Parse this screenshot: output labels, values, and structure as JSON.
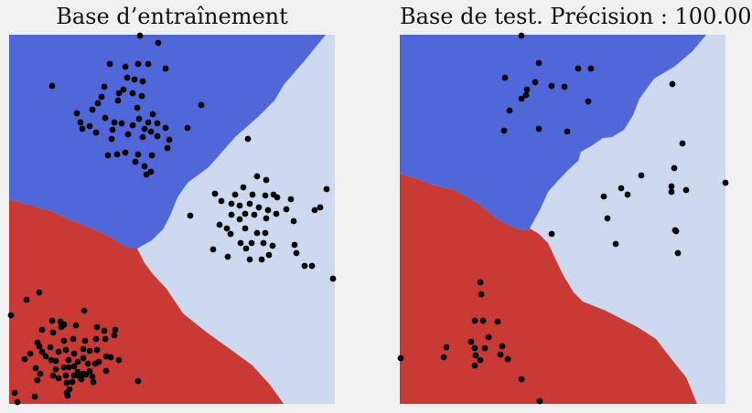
{
  "colors": {
    "region_blue": "#4f67d9",
    "region_light": "#ccd9ee",
    "region_red": "#c93a35",
    "points": "#000000",
    "background": "#f0f0f0"
  },
  "chart_data": [
    {
      "type": "scatter",
      "title": "Base d’entraînement",
      "xlabel": "",
      "ylabel": "",
      "xlim": [
        0,
        356
      ],
      "ylim": [
        0,
        404
      ],
      "grid": false,
      "regions": [
        {
          "class": "blue",
          "boundary": [
            [
              0,
              0
            ],
            [
              346,
              0
            ],
            [
              325,
              26
            ],
            [
              300,
              55
            ],
            [
              290,
              72
            ],
            [
              272,
              90
            ],
            [
              247,
              112
            ],
            [
              218,
              145
            ],
            [
              195,
              162
            ],
            [
              184,
              178
            ],
            [
              176,
              198
            ],
            [
              168,
              213
            ],
            [
              156,
              225
            ],
            [
              140,
              234
            ],
            [
              127,
              232
            ],
            [
              112,
              222
            ],
            [
              88,
              211
            ],
            [
              68,
              203
            ],
            [
              46,
              193
            ],
            [
              0,
              180
            ]
          ]
        },
        {
          "class": "red",
          "boundary": [
            [
              0,
              180
            ],
            [
              46,
              193
            ],
            [
              68,
              203
            ],
            [
              88,
              211
            ],
            [
              112,
              222
            ],
            [
              127,
              232
            ],
            [
              140,
              234
            ],
            [
              148,
              250
            ],
            [
              158,
              263
            ],
            [
              172,
              278
            ],
            [
              190,
              305
            ],
            [
              215,
              325
            ],
            [
              240,
              343
            ],
            [
              266,
              362
            ],
            [
              285,
              383
            ],
            [
              300,
              404
            ],
            [
              0,
              404
            ]
          ]
        }
      ],
      "points": [
        [
          143,
          1
        ],
        [
          163,
          9
        ],
        [
          47,
          56
        ],
        [
          110,
          32
        ],
        [
          127,
          35
        ],
        [
          141,
          32
        ],
        [
          152,
          32
        ],
        [
          171,
          37
        ],
        [
          137,
          49
        ],
        [
          129,
          47
        ],
        [
          146,
          51
        ],
        [
          104,
          57
        ],
        [
          125,
          60
        ],
        [
          120,
          64
        ],
        [
          135,
          64
        ],
        [
          145,
          67
        ],
        [
          119,
          72
        ],
        [
          101,
          68
        ],
        [
          97,
          75
        ],
        [
          74,
          86
        ],
        [
          91,
          82
        ],
        [
          78,
          96
        ],
        [
          88,
          100
        ],
        [
          105,
          91
        ],
        [
          115,
          96
        ],
        [
          113,
          104
        ],
        [
          123,
          97
        ],
        [
          135,
          99
        ],
        [
          142,
          92
        ],
        [
          152,
          96
        ],
        [
          148,
          103
        ],
        [
          162,
          97
        ],
        [
          155,
          106
        ],
        [
          171,
          102
        ],
        [
          140,
          80
        ],
        [
          157,
          87
        ],
        [
          80,
          103
        ],
        [
          95,
          107
        ],
        [
          112,
          114
        ],
        [
          130,
          109
        ],
        [
          146,
          112
        ],
        [
          162,
          111
        ],
        [
          175,
          115
        ],
        [
          173,
          124
        ],
        [
          156,
          132
        ],
        [
          141,
          131
        ],
        [
          127,
          129
        ],
        [
          118,
          131
        ],
        [
          108,
          132
        ],
        [
          138,
          139
        ],
        [
          148,
          144
        ],
        [
          155,
          150
        ],
        [
          150,
          153
        ],
        [
          195,
          102
        ],
        [
          210,
          77
        ],
        [
          261,
          114
        ],
        [
          271,
          155
        ],
        [
          281,
          159
        ],
        [
          256,
          167
        ],
        [
          247,
          175
        ],
        [
          266,
          175
        ],
        [
          280,
          176
        ],
        [
          289,
          175
        ],
        [
          293,
          178
        ],
        [
          308,
          180
        ],
        [
          347,
          169
        ],
        [
          225,
          174
        ],
        [
          232,
          182
        ],
        [
          243,
          185
        ],
        [
          252,
          187
        ],
        [
          263,
          185
        ],
        [
          273,
          189
        ],
        [
          283,
          192
        ],
        [
          292,
          196
        ],
        [
          303,
          191
        ],
        [
          340,
          189
        ],
        [
          334,
          192
        ],
        [
          198,
          198
        ],
        [
          243,
          197
        ],
        [
          252,
          202
        ],
        [
          258,
          196
        ],
        [
          268,
          197
        ],
        [
          281,
          201
        ],
        [
          311,
          204
        ],
        [
          230,
          208
        ],
        [
          238,
          212
        ],
        [
          242,
          218
        ],
        [
          258,
          212
        ],
        [
          271,
          217
        ],
        [
          280,
          217
        ],
        [
          223,
          235
        ],
        [
          253,
          228
        ],
        [
          265,
          228
        ],
        [
          278,
          228
        ],
        [
          288,
          231
        ],
        [
          239,
          243
        ],
        [
          259,
          234
        ],
        [
          276,
          246
        ],
        [
          263,
          246
        ],
        [
          284,
          241
        ],
        [
          312,
          230
        ],
        [
          314,
          239
        ],
        [
          323,
          253
        ],
        [
          331,
          253
        ],
        [
          354,
          267
        ],
        [
          2,
          307
        ],
        [
          19,
          290
        ],
        [
          33,
          282
        ],
        [
          82,
          302
        ],
        [
          36,
          323
        ],
        [
          47,
          313
        ],
        [
          56,
          314
        ],
        [
          57,
          320
        ],
        [
          60,
          317
        ],
        [
          73,
          318
        ],
        [
          96,
          320
        ],
        [
          104,
          324
        ],
        [
          115,
          329
        ],
        [
          116,
          323
        ],
        [
          48,
          326
        ],
        [
          60,
          335
        ],
        [
          70,
          333
        ],
        [
          83,
          335
        ],
        [
          95,
          333
        ],
        [
          105,
          333
        ],
        [
          31,
          337
        ],
        [
          33,
          341
        ],
        [
          45,
          342
        ],
        [
          54,
          347
        ],
        [
          62,
          345
        ],
        [
          71,
          349
        ],
        [
          81,
          344
        ],
        [
          88,
          346
        ],
        [
          96,
          345
        ],
        [
          36,
          347
        ],
        [
          17,
          355
        ],
        [
          23,
          349
        ],
        [
          40,
          352
        ],
        [
          46,
          356
        ],
        [
          51,
          357
        ],
        [
          65,
          356
        ],
        [
          75,
          358
        ],
        [
          81,
          354
        ],
        [
          86,
          360
        ],
        [
          98,
          358
        ],
        [
          106,
          352
        ],
        [
          111,
          353
        ],
        [
          120,
          356
        ],
        [
          29,
          365
        ],
        [
          34,
          371
        ],
        [
          51,
          366
        ],
        [
          60,
          364
        ],
        [
          65,
          364
        ],
        [
          71,
          363
        ],
        [
          75,
          369
        ],
        [
          81,
          371
        ],
        [
          88,
          368
        ],
        [
          94,
          360
        ],
        [
          106,
          368
        ],
        [
          31,
          378
        ],
        [
          48,
          373
        ],
        [
          54,
          376
        ],
        [
          62,
          373
        ],
        [
          71,
          373
        ],
        [
          77,
          374
        ],
        [
          84,
          372
        ],
        [
          91,
          374
        ],
        [
          92,
          380
        ],
        [
          69,
          380
        ],
        [
          79,
          377
        ],
        [
          63,
          381
        ],
        [
          66,
          388
        ],
        [
          64,
          395
        ],
        [
          141,
          379
        ],
        [
          6,
          392
        ],
        [
          9,
          402
        ],
        [
          28,
          396
        ],
        [
          63,
          392
        ]
      ]
    },
    {
      "type": "scatter",
      "title": "Base de test. Précision : 100.00",
      "xlabel": "",
      "ylabel": "",
      "xlim": [
        0,
        356
      ],
      "ylim": [
        0,
        404
      ],
      "grid": false,
      "regions": [
        {
          "class": "blue",
          "boundary": [
            [
              0,
              0
            ],
            [
              335,
              0
            ],
            [
              320,
              18
            ],
            [
              300,
              35
            ],
            [
              278,
              48
            ],
            [
              262,
              70
            ],
            [
              255,
              88
            ],
            [
              245,
              104
            ],
            [
              232,
              112
            ],
            [
              222,
              113
            ],
            [
              209,
              122
            ],
            [
              198,
              128
            ],
            [
              195,
              138
            ],
            [
              183,
              149
            ],
            [
              170,
              163
            ],
            [
              162,
              172
            ],
            [
              154,
              190
            ],
            [
              142,
              212
            ],
            [
              134,
              214
            ],
            [
              122,
              210
            ],
            [
              104,
              200
            ],
            [
              88,
              186
            ],
            [
              60,
              170
            ],
            [
              35,
              164
            ],
            [
              20,
              158
            ],
            [
              0,
              152
            ]
          ]
        },
        {
          "class": "red",
          "boundary": [
            [
              0,
              152
            ],
            [
              20,
              158
            ],
            [
              35,
              164
            ],
            [
              60,
              170
            ],
            [
              88,
              186
            ],
            [
              104,
              200
            ],
            [
              122,
              210
            ],
            [
              134,
              214
            ],
            [
              142,
              212
            ],
            [
              152,
              218
            ],
            [
              162,
              228
            ],
            [
              170,
              245
            ],
            [
              178,
              262
            ],
            [
              190,
              282
            ],
            [
              200,
              292
            ],
            [
              225,
              302
            ],
            [
              260,
              320
            ],
            [
              280,
              333
            ],
            [
              297,
              355
            ],
            [
              313,
              375
            ],
            [
              325,
              404
            ],
            [
              0,
              404
            ]
          ]
        }
      ],
      "points": [
        [
          133,
          1
        ],
        [
          152,
          31
        ],
        [
          195,
          37
        ],
        [
          209,
          37
        ],
        [
          115,
          47
        ],
        [
          148,
          52
        ],
        [
          166,
          56
        ],
        [
          180,
          57
        ],
        [
          139,
          60
        ],
        [
          298,
          54
        ],
        [
          138,
          66
        ],
        [
          133,
          70
        ],
        [
          206,
          73
        ],
        [
          120,
          83
        ],
        [
          114,
          105
        ],
        [
          152,
          103
        ],
        [
          183,
          106
        ],
        [
          309,
          119
        ],
        [
          264,
          154
        ],
        [
          300,
          146
        ],
        [
          242,
          168
        ],
        [
          249,
          175
        ],
        [
          223,
          177
        ],
        [
          297,
          166
        ],
        [
          297,
          172
        ],
        [
          313,
          170
        ],
        [
          356,
          162
        ],
        [
          227,
          201
        ],
        [
          166,
          218
        ],
        [
          236,
          229
        ],
        [
          301,
          214
        ],
        [
          304,
          239
        ],
        [
          302,
          215
        ],
        [
          88,
          271
        ],
        [
          89,
          284
        ],
        [
          82,
          313
        ],
        [
          91,
          313
        ],
        [
          107,
          314
        ],
        [
          97,
          331
        ],
        [
          78,
          336
        ],
        [
          51,
          342
        ],
        [
          82,
          343
        ],
        [
          93,
          343
        ],
        [
          112,
          341
        ],
        [
          48,
          353
        ],
        [
          83,
          351
        ],
        [
          88,
          356
        ],
        [
          110,
          350
        ],
        [
          118,
          355
        ],
        [
          1,
          354
        ],
        [
          82,
          362
        ],
        [
          133,
          377
        ],
        [
          153,
          401
        ]
      ]
    }
  ]
}
